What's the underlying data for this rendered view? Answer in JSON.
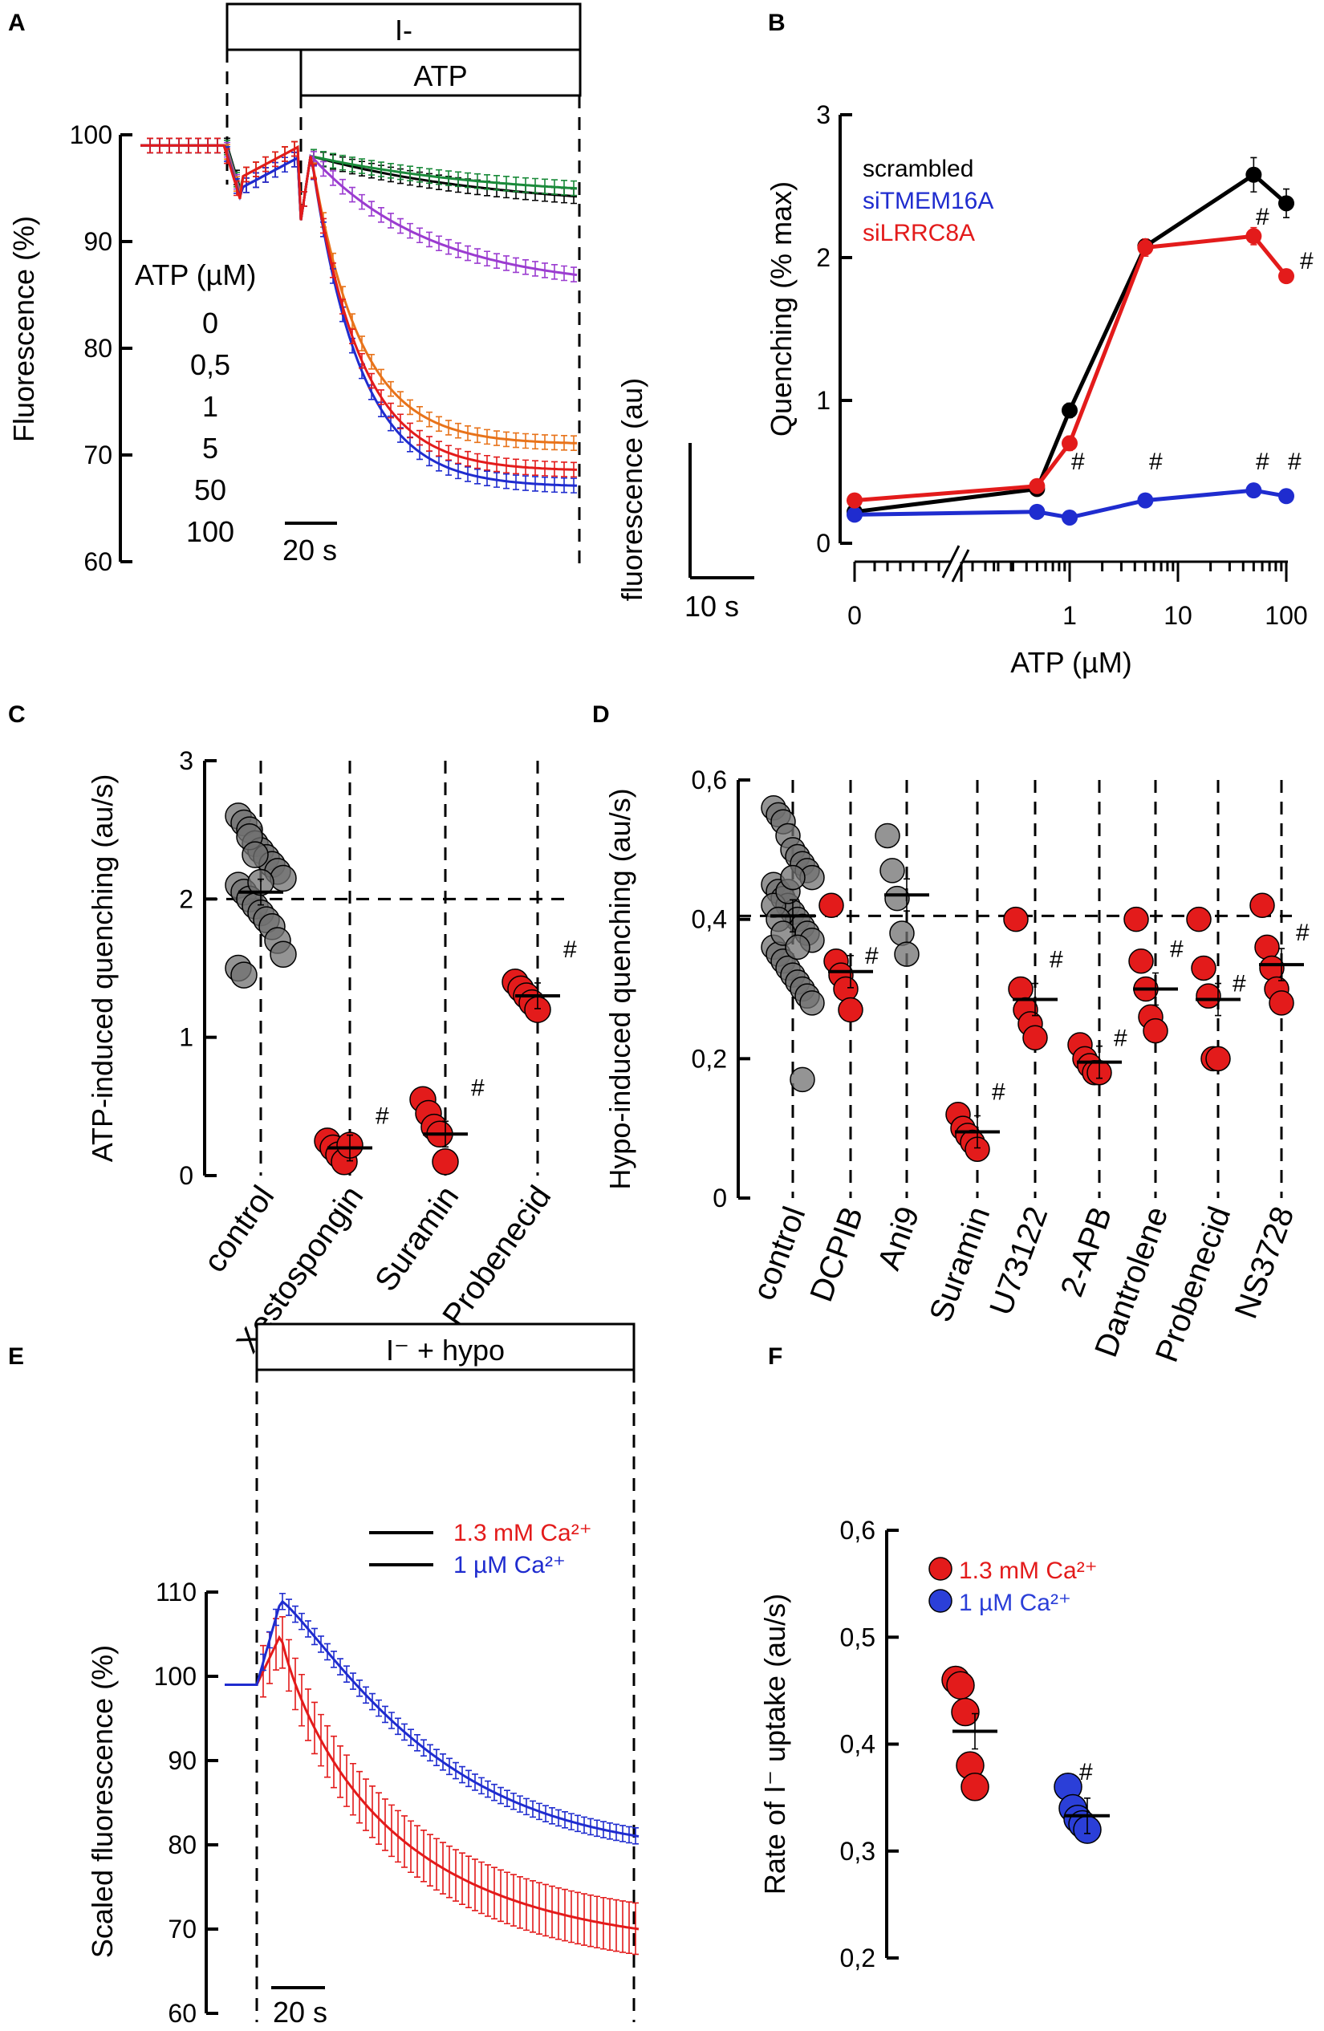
{
  "chart_data": [
    {
      "panel": "A",
      "type": "line",
      "ylabel": "Fluorescence (%)",
      "ylim": [
        60,
        100
      ],
      "yticks": [
        "60",
        "70",
        "80",
        "90",
        "100"
      ],
      "bar_iodide": "I-",
      "bar_atp": "ATP",
      "legend_title": "ATP (µM)",
      "scale_bar": "20 s",
      "inset_ylabel": "fluorescence (au)",
      "inset_scale": "10 s",
      "series": [
        {
          "name": "0",
          "color": "#000000",
          "final": 93
        },
        {
          "name": "0,5",
          "color": "#1a8a3a",
          "final": 94
        },
        {
          "name": "1",
          "color": "#9b3cd0",
          "final": 85.5
        },
        {
          "name": "5",
          "color": "#e8731a",
          "final": 71
        },
        {
          "name": "50",
          "color": "#1f2ccf",
          "final": 67
        },
        {
          "name": "100",
          "color": "#e31b1b",
          "final": 68.5
        }
      ]
    },
    {
      "panel": "B",
      "type": "line",
      "ylabel": "Quenching (% max)",
      "xlabel": "ATP (µM)",
      "ylim": [
        0,
        3
      ],
      "yticks": [
        "0",
        "1",
        "2",
        "3"
      ],
      "xticks": [
        "0",
        "1",
        "10",
        "100"
      ],
      "x": [
        0,
        0.5,
        1,
        5,
        50,
        100
      ],
      "series": [
        {
          "name": "scrambled",
          "color": "#000000",
          "values": [
            0.22,
            0.38,
            0.93,
            2.08,
            2.58,
            2.38
          ]
        },
        {
          "name": "siTMEM16A",
          "color": "#1f2ccf",
          "values": [
            0.2,
            0.22,
            0.18,
            0.3,
            0.37,
            0.33
          ]
        },
        {
          "name": "siLRRC8A",
          "color": "#e31b1b",
          "values": [
            0.3,
            0.4,
            0.7,
            2.07,
            2.15,
            1.87
          ]
        }
      ],
      "hash_mark": "#"
    },
    {
      "panel": "C",
      "type": "scatter",
      "ylabel": "ATP-induced quenching  (au/s)",
      "ylim": [
        0,
        3
      ],
      "yticks": [
        "0",
        "1",
        "2",
        "3"
      ],
      "categories": [
        "control",
        "Xestospongin",
        "Suramin",
        "Probenecid"
      ],
      "means": [
        2.05,
        0.2,
        0.3,
        1.3
      ],
      "points": [
        [
          2.6,
          2.55,
          2.5,
          2.4,
          2.35,
          2.3,
          2.25,
          2.2,
          2.15,
          2.1,
          2.05,
          2.0,
          1.95,
          1.9,
          1.85,
          1.8,
          1.7,
          1.6,
          1.5,
          1.45,
          2.45,
          2.32,
          2.12
        ],
        [
          0.25,
          0.2,
          0.15,
          0.1,
          0.22
        ],
        [
          0.55,
          0.45,
          0.35,
          0.3,
          0.1
        ],
        [
          1.4,
          1.35,
          1.3,
          1.25,
          1.2
        ]
      ],
      "hash_mark": "#"
    },
    {
      "panel": "D",
      "type": "scatter",
      "ylabel": "Hypo-induced quenching  (au/s)",
      "ylim": [
        0,
        0.6
      ],
      "yticks": [
        "0",
        "0,2",
        "0,4",
        "0,6"
      ],
      "categories": [
        "control",
        "DCPIB",
        "Ani9",
        "Suramin",
        "U73122",
        "2-APB",
        "Dantrolene",
        "Probenecid",
        "NS3728"
      ],
      "means": [
        0.405,
        0.325,
        0.435,
        0.095,
        0.285,
        0.195,
        0.3,
        0.285,
        0.335
      ],
      "points": [
        [
          0.56,
          0.55,
          0.54,
          0.52,
          0.5,
          0.49,
          0.48,
          0.47,
          0.46,
          0.45,
          0.44,
          0.43,
          0.42,
          0.41,
          0.4,
          0.39,
          0.38,
          0.37,
          0.36,
          0.35,
          0.34,
          0.33,
          0.32,
          0.31,
          0.3,
          0.29,
          0.28,
          0.42,
          0.4,
          0.38,
          0.44,
          0.46,
          0.36,
          0.17
        ],
        [
          0.42,
          0.34,
          0.32,
          0.3,
          0.27
        ],
        [
          0.52,
          0.47,
          0.43,
          0.38,
          0.35
        ],
        [
          0.12,
          0.1,
          0.09,
          0.08,
          0.07
        ],
        [
          0.4,
          0.3,
          0.27,
          0.25,
          0.23
        ],
        [
          0.22,
          0.2,
          0.19,
          0.18,
          0.18
        ],
        [
          0.4,
          0.34,
          0.3,
          0.26,
          0.24
        ],
        [
          0.4,
          0.33,
          0.29,
          0.2,
          0.2
        ],
        [
          0.42,
          0.36,
          0.33,
          0.3,
          0.28
        ]
      ],
      "hash_mark": "#"
    },
    {
      "panel": "E",
      "type": "line",
      "ylabel": "Scaled fluorescence (%)",
      "ylim": [
        60,
        110
      ],
      "yticks": [
        "60",
        "70",
        "80",
        "90",
        "100",
        "110"
      ],
      "bar_label": "I⁻ + hypo",
      "scale_bar": "20 s",
      "series": [
        {
          "name": "1.3 mM Ca²⁺",
          "color": "#e31b1b",
          "peak": 105,
          "final": 70
        },
        {
          "name": "1     µM Ca²⁺",
          "color": "#1f2ccf",
          "peak": 109,
          "final": 81
        }
      ]
    },
    {
      "panel": "F",
      "type": "scatter",
      "ylabel": "Rate of I⁻ uptake (au/s)",
      "ylim": [
        0.2,
        0.6
      ],
      "yticks": [
        "0,2",
        "0,3",
        "0,4",
        "0,5",
        "0,6"
      ],
      "categories": [
        "1.3 mM Ca²⁺",
        "1     µM Ca²⁺"
      ],
      "means": [
        0.412,
        0.333
      ],
      "points": [
        [
          0.46,
          0.455,
          0.43,
          0.38,
          0.36
        ],
        [
          0.36,
          0.34,
          0.33,
          0.325,
          0.32
        ]
      ],
      "hash_mark": "#"
    }
  ]
}
